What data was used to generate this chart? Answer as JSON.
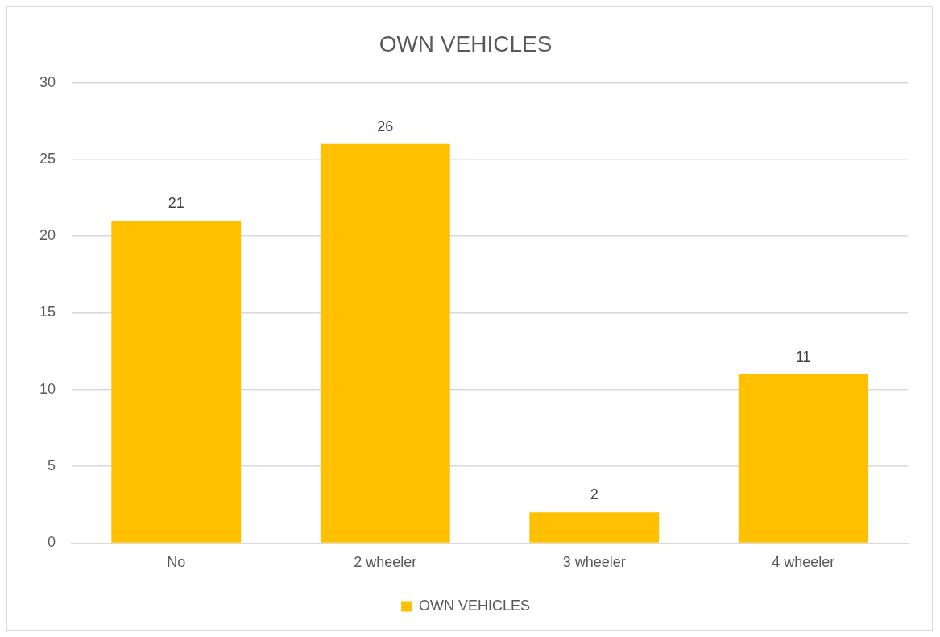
{
  "chart_data": {
    "type": "bar",
    "title": "OWN VEHICLES",
    "categories": [
      "No",
      "2 wheeler",
      "3 wheeler",
      "4 wheeler"
    ],
    "series": [
      {
        "name": "OWN VEHICLES",
        "color": "#ffc000",
        "values": [
          21,
          26,
          2,
          11
        ]
      }
    ],
    "ylim": [
      0,
      30
    ],
    "yticks": [
      0,
      5,
      10,
      15,
      20,
      25,
      30
    ],
    "grid": "y",
    "legend": "bottom",
    "data_labels": true
  }
}
